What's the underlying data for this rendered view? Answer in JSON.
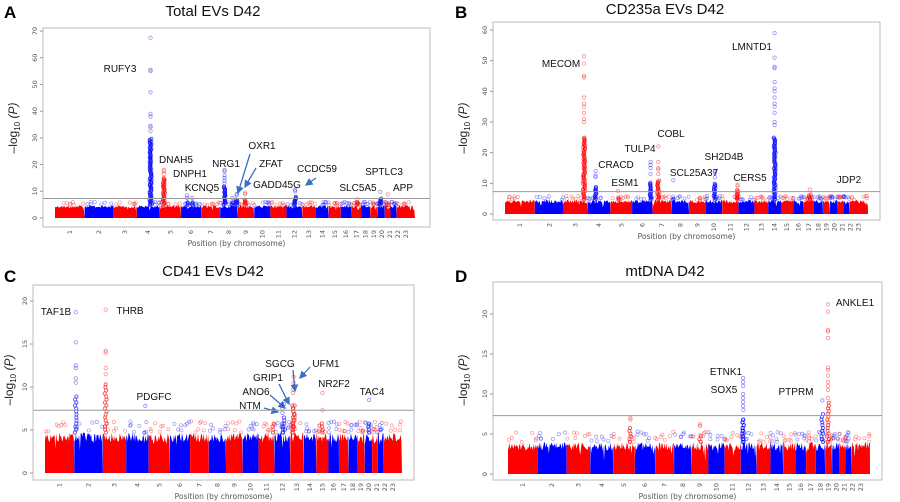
{
  "chart_data": [
    {
      "type": "scatter",
      "panel_letter": "A",
      "title": "Total EVs D42",
      "xlabel": "Position (by chromosome)",
      "ylabel": {
        "base": "–log",
        "sub": "10",
        "arg": " (P)"
      },
      "ylim": [
        0,
        70
      ],
      "yticks": [
        0,
        10,
        20,
        30,
        40,
        50,
        60,
        70
      ],
      "chromosomes": [
        "1",
        "2",
        "3",
        "4",
        "5",
        "6",
        "7",
        "8",
        "9",
        "10",
        "11",
        "12",
        "13",
        "14",
        "15",
        "16",
        "17",
        "18",
        "19",
        "20",
        "21",
        "22",
        "23"
      ],
      "odd_chromosome_color": "#ff0000",
      "even_chromosome_color": "#0000ff",
      "significance_threshold": 7.3,
      "background_level": 4.8,
      "peaks": [
        {
          "chr": 4,
          "pos": 0.6,
          "label": "RUFY3",
          "column_top": 30,
          "points": [
            67.5,
            55.5,
            55,
            47,
            39,
            38,
            34.5,
            34,
            32.5
          ]
        },
        {
          "chr": 5,
          "pos": 0.2,
          "label": "DNAH5",
          "column_top": 15,
          "points": [
            18,
            17.5,
            16.5
          ]
        },
        {
          "chr": 6,
          "pos": 0.3,
          "label": "DNPH1",
          "column_top": 6,
          "points": [
            8.5,
            7.5
          ]
        },
        {
          "chr": 6,
          "pos": 0.55,
          "label": "KCNQ5",
          "column_top": 6,
          "points": [
            7.5
          ]
        },
        {
          "chr": 8,
          "pos": 0.25,
          "label": "NRG1",
          "column_top": 12,
          "points": [
            18,
            17.5,
            16,
            15,
            14,
            13
          ]
        },
        {
          "chr": 8,
          "pos": 0.7,
          "label": "OXR1",
          "column_top": 6,
          "points": [
            7.5
          ]
        },
        {
          "chr": 8,
          "pos": 0.95,
          "label": "ZFAT",
          "column_top": 7,
          "points": [
            9,
            8.5
          ]
        },
        {
          "chr": 9,
          "pos": 0.45,
          "label": "GADD45G",
          "column_top": 7,
          "points": [
            9.5,
            9
          ]
        },
        {
          "chr": 12,
          "pos": 0.55,
          "label": "CCDC59",
          "column_top": 8,
          "points": [
            10.5,
            10
          ]
        },
        {
          "chr": 17,
          "pos": 0.6,
          "label": "SLC5A5",
          "column_top": 6,
          "points": [
            7
          ]
        },
        {
          "chr": 20,
          "pos": 0.4,
          "label": "SPTLC3",
          "column_top": 7.5,
          "points": [
            9.8
          ]
        },
        {
          "chr": 21,
          "pos": 0.5,
          "label": "APP",
          "column_top": 5,
          "points": [
            8.8
          ]
        }
      ]
    },
    {
      "type": "scatter",
      "panel_letter": "B",
      "title": "CD235a EVs D42",
      "xlabel": "Position (by chromosome)",
      "ylabel": {
        "base": "–log",
        "sub": "10",
        "arg": " (P)"
      },
      "ylim": [
        0,
        60
      ],
      "yticks": [
        0,
        10,
        20,
        30,
        40,
        50,
        60
      ],
      "chromosomes": [
        "1",
        "2",
        "3",
        "4",
        "5",
        "6",
        "7",
        "8",
        "9",
        "10",
        "11",
        "12",
        "13",
        "14",
        "15",
        "16",
        "17",
        "18",
        "19",
        "20",
        "21",
        "22",
        "23"
      ],
      "odd_chromosome_color": "#ff0000",
      "even_chromosome_color": "#0000ff",
      "significance_threshold": 7.3,
      "background_level": 4.6,
      "peaks": [
        {
          "chr": 3,
          "pos": 0.85,
          "label": "MECOM",
          "column_top": 25,
          "points": [
            51.5,
            49,
            45,
            44.5,
            38,
            36,
            35,
            33,
            31,
            30
          ]
        },
        {
          "chr": 4,
          "pos": 0.35,
          "label": "CRACD",
          "column_top": 9,
          "points": [
            14,
            12.5,
            12
          ]
        },
        {
          "chr": 5,
          "pos": 0.35,
          "label": "ESM1",
          "column_top": 5.5,
          "points": [
            7.5
          ]
        },
        {
          "chr": 6,
          "pos": 0.9,
          "label": "TULP4",
          "column_top": 10.5,
          "points": [
            17,
            16,
            15,
            13
          ]
        },
        {
          "chr": 7,
          "pos": 0.3,
          "label": "COBL",
          "column_top": 11,
          "points": [
            22,
            17,
            15,
            14.5,
            13
          ]
        },
        {
          "chr": 8,
          "pos": 0.1,
          "label": "SCL25A37",
          "column_top": 5,
          "points": [
            11
          ]
        },
        {
          "chr": 10,
          "pos": 0.55,
          "label": "SH2D4B",
          "column_top": 10,
          "points": [
            14,
            13.5,
            12
          ]
        },
        {
          "chr": 11,
          "pos": 0.95,
          "label": "CERS5",
          "column_top": 8,
          "points": [
            9.5,
            9
          ]
        },
        {
          "chr": 14,
          "pos": 0.5,
          "label": "LMNTD1",
          "column_top": 25,
          "points": [
            59,
            51,
            48,
            47.5,
            43,
            41,
            40,
            38,
            36,
            35,
            33,
            30,
            29
          ]
        },
        {
          "chr": 17,
          "pos": 0.6,
          "label": "JDP2",
          "column_top": 6.5,
          "points": [
            8
          ]
        }
      ]
    },
    {
      "type": "scatter",
      "panel_letter": "C",
      "title": "CD41 EVs D42",
      "xlabel": "Position (by chromosome)",
      "ylabel": {
        "base": "–log",
        "sub": "10",
        "arg": " (P)"
      },
      "ylim": [
        0,
        20
      ],
      "yticks": [
        0,
        5,
        10,
        15,
        20
      ],
      "chromosomes": [
        "1",
        "2",
        "3",
        "4",
        "5",
        "6",
        "7",
        "8",
        "9",
        "10",
        "11",
        "12",
        "13",
        "14",
        "15",
        "16",
        "17",
        "18",
        "19",
        "20",
        "21",
        "22",
        "23"
      ],
      "odd_chromosome_color": "#ff0000",
      "even_chromosome_color": "#0000ff",
      "significance_threshold": 7.3,
      "background_level": 4.7,
      "peaks": [
        {
          "chr": 2,
          "pos": 0.05,
          "label": "TAF1B",
          "column_top": 9,
          "points": [
            18.7,
            15.2,
            12.5,
            12.2,
            11,
            10.5
          ]
        },
        {
          "chr": 3,
          "pos": 0.12,
          "label": "THRB",
          "column_top": 10.5,
          "points": [
            19,
            14.2,
            14,
            12.2,
            11.5
          ]
        },
        {
          "chr": 4,
          "pos": 0.85,
          "label": "PDGFC",
          "column_top": 5,
          "points": [
            7.8
          ]
        },
        {
          "chr": 11,
          "pos": 0.9,
          "label": "NTM",
          "column_top": 6,
          "points": [
            7.3
          ]
        },
        {
          "chr": 12,
          "pos": 0.5,
          "label": "ANO6",
          "column_top": 6,
          "points": [
            7.5,
            7
          ]
        },
        {
          "chr": 12,
          "pos": 0.6,
          "label": "GRIP1",
          "column_top": 6.5,
          "points": [
            8
          ]
        },
        {
          "chr": 13,
          "pos": 0.2,
          "label": "SGCG",
          "column_top": 8,
          "points": [
            9.7,
            9.3
          ]
        },
        {
          "chr": 13,
          "pos": 0.25,
          "label": "UFM1",
          "column_top": 8,
          "points": [
            11.2,
            10.5
          ]
        },
        {
          "chr": 15,
          "pos": 0.5,
          "label": "NR2F2",
          "column_top": 6,
          "points": [
            9.3,
            7.3
          ]
        },
        {
          "chr": 20,
          "pos": 0.6,
          "label": "TAC4",
          "column_top": 6,
          "points": [
            8.5
          ]
        }
      ]
    },
    {
      "type": "scatter",
      "panel_letter": "D",
      "title": "mtDNA D42",
      "xlabel": "Position (by chromosome)",
      "ylabel": {
        "base": "–log",
        "sub": "10",
        "arg": " (P)"
      },
      "ylim": [
        0,
        20
      ],
      "yticks": [
        0,
        5,
        10,
        15,
        20
      ],
      "chromosomes": [
        "1",
        "2",
        "3",
        "4",
        "5",
        "6",
        "7",
        "8",
        "9",
        "10",
        "11",
        "12",
        "13",
        "14",
        "15",
        "16",
        "17",
        "18",
        "19",
        "20",
        "21",
        "22",
        "23"
      ],
      "odd_chromosome_color": "#ff0000",
      "even_chromosome_color": "#0000ff",
      "significance_threshold": 7.3,
      "background_level": 4.0,
      "peaks": [
        {
          "chr": 5,
          "pos": 0.8,
          "label": "",
          "column_top": 6,
          "points": [
            7,
            6.8
          ]
        },
        {
          "chr": 9,
          "pos": 0.5,
          "label": "",
          "column_top": 5,
          "points": [
            6.2,
            6
          ]
        },
        {
          "chr": 12,
          "pos": 0.15,
          "label": "ETNK1",
          "column_top": 7,
          "points": [
            12,
            11.5,
            11,
            10,
            9.5,
            9,
            8.5
          ]
        },
        {
          "chr": 12,
          "pos": 0.17,
          "label": "SOX5",
          "column_top": 7,
          "points": [
            8
          ]
        },
        {
          "chr": 18,
          "pos": 0.7,
          "label": "PTPRM",
          "column_top": 7.8,
          "points": [
            9.2
          ]
        },
        {
          "chr": 19,
          "pos": 0.4,
          "label": "ANKLE1",
          "column_top": 9,
          "points": [
            21.2,
            20.3,
            18,
            17.8,
            17,
            13.3,
            13,
            12.3,
            11.5,
            11,
            10.5,
            9.5
          ]
        }
      ]
    }
  ]
}
